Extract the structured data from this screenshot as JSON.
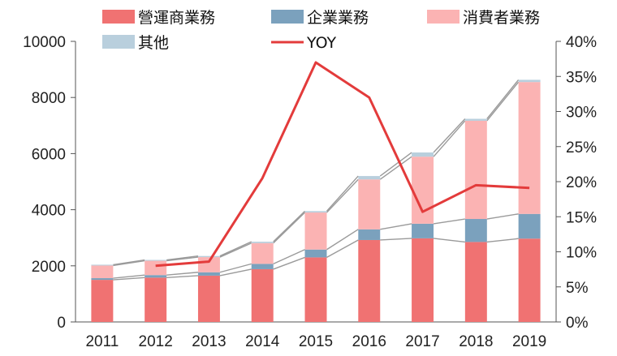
{
  "chart_data": {
    "type": "bar",
    "stacked": true,
    "categories": [
      "2011",
      "2012",
      "2013",
      "2014",
      "2015",
      "2016",
      "2017",
      "2018",
      "2019"
    ],
    "series": [
      {
        "name": "營運商業務",
        "type": "bar",
        "color": "#f07272",
        "values": [
          1500,
          1580,
          1650,
          1880,
          2300,
          2920,
          2980,
          2850,
          2970
        ]
      },
      {
        "name": "企業業務",
        "type": "bar",
        "color": "#7ba1bd",
        "values": [
          60,
          90,
          120,
          190,
          280,
          380,
          520,
          820,
          880
        ]
      },
      {
        "name": "消費者業務",
        "type": "bar",
        "color": "#fbb3b3",
        "values": [
          450,
          510,
          540,
          740,
          1320,
          1780,
          2390,
          3500,
          4700
        ]
      },
      {
        "name": "其他",
        "type": "bar",
        "color": "#b9cfdd",
        "values": [
          30,
          30,
          40,
          50,
          50,
          120,
          150,
          70,
          80
        ]
      },
      {
        "name": "YOY",
        "type": "line",
        "axis": "right",
        "color": "#e33b3b",
        "values": [
          null,
          8,
          8.6,
          20.5,
          37,
          32,
          15.7,
          19.5,
          19.1
        ]
      }
    ],
    "y_left": {
      "min": 0,
      "max": 10000,
      "ticks": [
        "0",
        "2000",
        "4000",
        "6000",
        "8000",
        "10000"
      ]
    },
    "y_right": {
      "min": 0,
      "max": 40,
      "ticks": [
        "0%",
        "5%",
        "10%",
        "15%",
        "20%",
        "25%",
        "30%",
        "35%",
        "40%"
      ]
    },
    "legend_position": "top",
    "grid": false
  }
}
